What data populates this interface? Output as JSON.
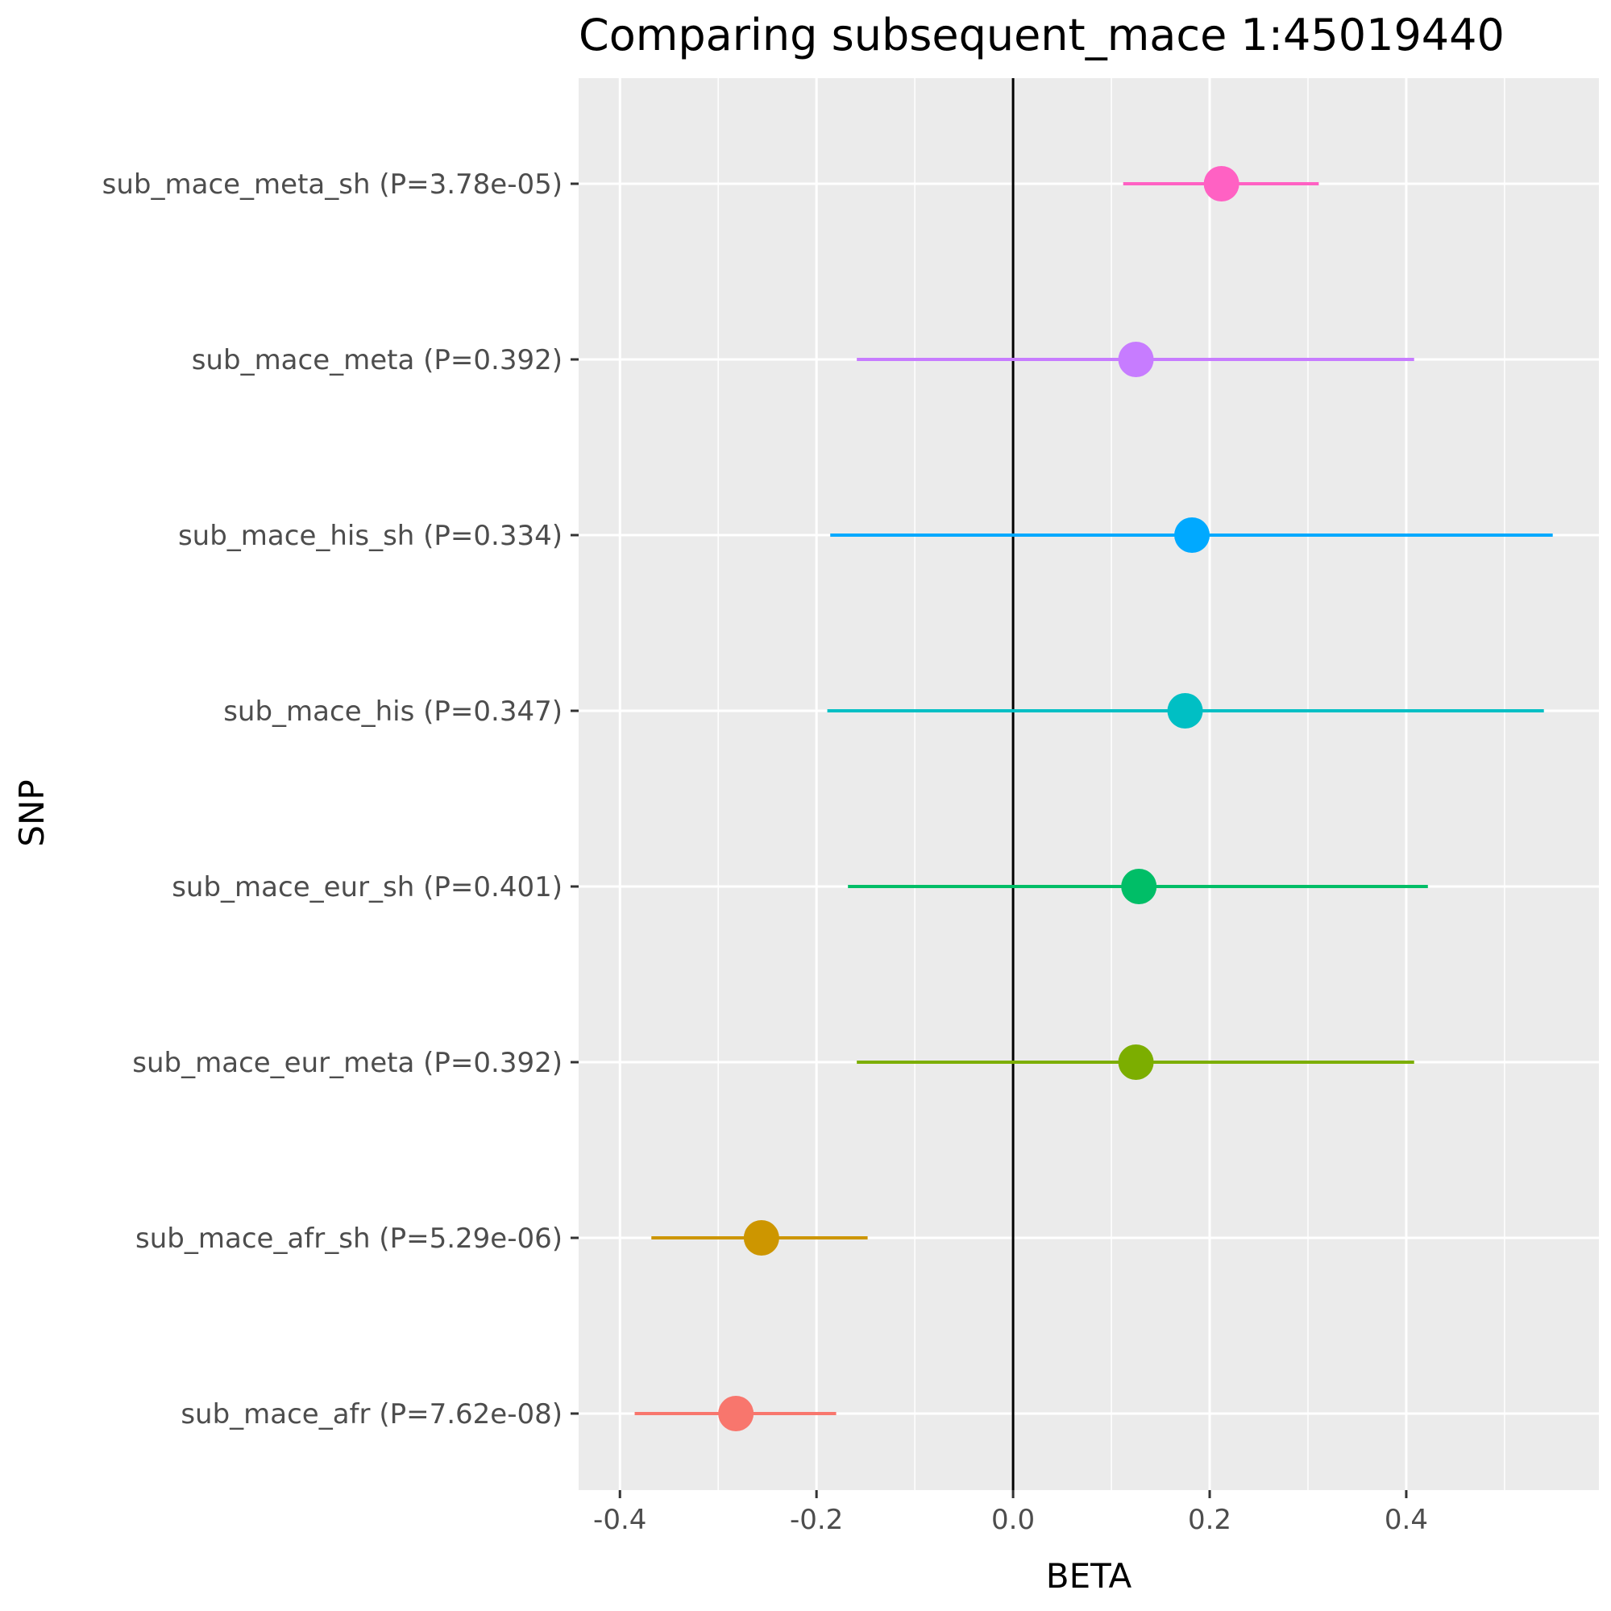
{
  "chart_data": {
    "type": "forest",
    "title": "Comparing subsequent_mace 1:45019440",
    "xlabel": "BETA",
    "ylabel": "SNP",
    "xlim": [
      -0.442,
      0.596
    ],
    "x_ticks": [
      -0.4,
      -0.2,
      0.0,
      0.2,
      0.4
    ],
    "x_tick_labels": [
      "-0.4",
      "-0.2",
      "0.0",
      "0.2",
      "0.4"
    ],
    "reference_line": 0,
    "grid": true,
    "legend": "none",
    "rows": [
      {
        "label": "sub_mace_meta_sh (P=3.78e-05)",
        "beta": 0.212,
        "lower": 0.112,
        "upper": 0.311,
        "color": "#FF61C3"
      },
      {
        "label": "sub_mace_meta (P=0.392)",
        "beta": 0.125,
        "lower": -0.159,
        "upper": 0.408,
        "color": "#C77CFF"
      },
      {
        "label": "sub_mace_his_sh (P=0.334)",
        "beta": 0.182,
        "lower": -0.186,
        "upper": 0.549,
        "color": "#00A9FF"
      },
      {
        "label": "sub_mace_his (P=0.347)",
        "beta": 0.175,
        "lower": -0.189,
        "upper": 0.54,
        "color": "#00BFC4"
      },
      {
        "label": "sub_mace_eur_sh (P=0.401)",
        "beta": 0.128,
        "lower": -0.168,
        "upper": 0.422,
        "color": "#00BE67"
      },
      {
        "label": "sub_mace_eur_meta (P=0.392)",
        "beta": 0.125,
        "lower": -0.159,
        "upper": 0.408,
        "color": "#7CAE00"
      },
      {
        "label": "sub_mace_afr_sh (P=5.29e-06)",
        "beta": -0.256,
        "lower": -0.368,
        "upper": -0.148,
        "color": "#CD9600"
      },
      {
        "label": "sub_mace_afr (P=7.62e-08)",
        "beta": -0.282,
        "lower": -0.385,
        "upper": -0.18,
        "color": "#F8766D"
      }
    ]
  }
}
